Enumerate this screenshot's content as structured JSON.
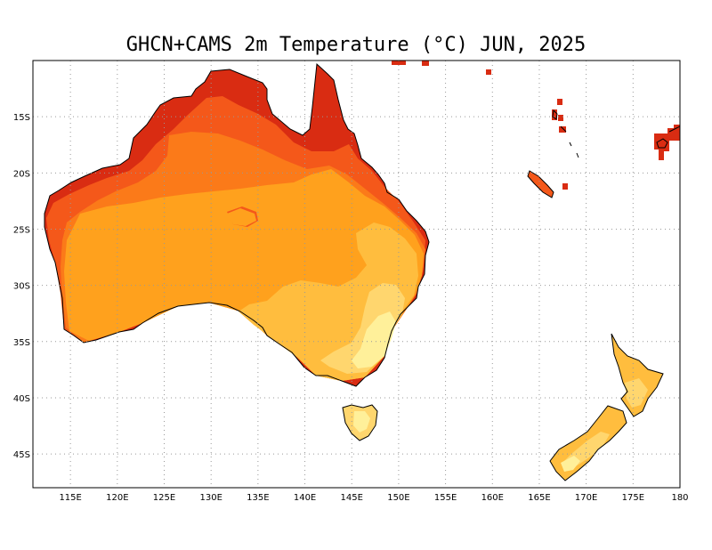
{
  "title": "GHCN+CAMS 2m Temperature (°C) JUN, 2025",
  "map": {
    "projection": "equirectangular",
    "lon_range": [
      111,
      180
    ],
    "lat_range": [
      -48,
      -10
    ],
    "grid": "dotted",
    "lon_ticks": [
      {
        "value": 115,
        "label": "115E"
      },
      {
        "value": 120,
        "label": "120E"
      },
      {
        "value": 125,
        "label": "125E"
      },
      {
        "value": 130,
        "label": "130E"
      },
      {
        "value": 135,
        "label": "135E"
      },
      {
        "value": 140,
        "label": "140E"
      },
      {
        "value": 145,
        "label": "145E"
      },
      {
        "value": 150,
        "label": "150E"
      },
      {
        "value": 155,
        "label": "155E"
      },
      {
        "value": 160,
        "label": "160E"
      },
      {
        "value": 165,
        "label": "165E"
      },
      {
        "value": 170,
        "label": "170E"
      },
      {
        "value": 175,
        "label": "175E"
      },
      {
        "value": 180,
        "label": "180"
      }
    ],
    "lat_ticks": [
      {
        "value": -15,
        "label": "15S"
      },
      {
        "value": -20,
        "label": "20S"
      },
      {
        "value": -25,
        "label": "25S"
      },
      {
        "value": -30,
        "label": "30S"
      },
      {
        "value": -35,
        "label": "35S"
      },
      {
        "value": -40,
        "label": "40S"
      },
      {
        "value": -45,
        "label": "45S"
      }
    ],
    "colors": {
      "hottest": "#d92c12",
      "hot": "#f4581a",
      "warm": "#fb7a19",
      "mild_warm": "#ffa11d",
      "mild": "#ffbd3e",
      "cool": "#ffd66e",
      "coolest": "#fff09a",
      "coast": "#000000",
      "grid": "#999999"
    }
  }
}
